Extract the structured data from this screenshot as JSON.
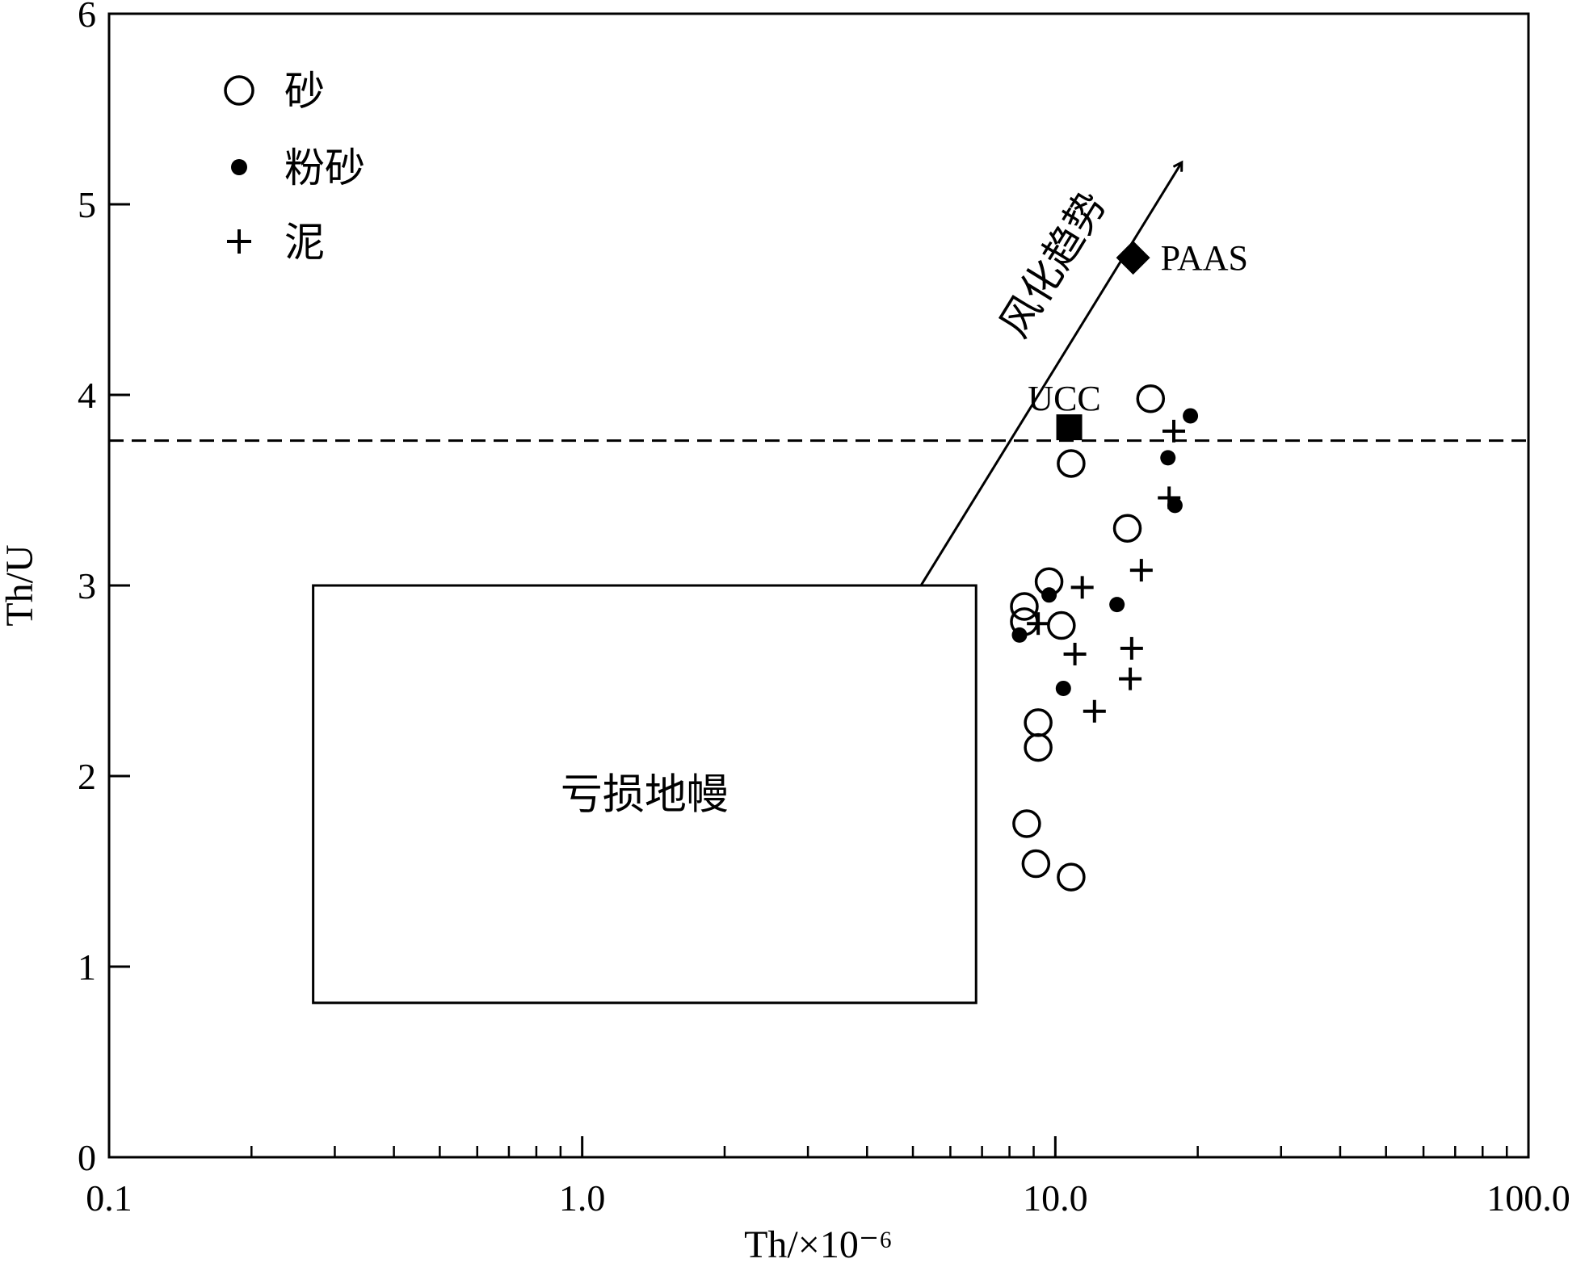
{
  "chart_data": {
    "type": "scatter",
    "xscale": "log",
    "xlim": [
      0.1,
      100
    ],
    "ylim": [
      0,
      6
    ],
    "xlabel": "Th/×10⁻⁶",
    "ylabel": "Th/U",
    "x_ticks": [
      {
        "value": 0.1,
        "label": "0.1"
      },
      {
        "value": 1,
        "label": "1.0"
      },
      {
        "value": 10,
        "label": "10.0"
      },
      {
        "value": 100,
        "label": "100.0"
      }
    ],
    "y_ticks": [
      {
        "value": 0,
        "label": "0"
      },
      {
        "value": 1,
        "label": "1"
      },
      {
        "value": 2,
        "label": "2"
      },
      {
        "value": 3,
        "label": "3"
      },
      {
        "value": 4,
        "label": "4"
      },
      {
        "value": 5,
        "label": "5"
      },
      {
        "value": 6,
        "label": "6"
      }
    ],
    "legend_position": "top-left",
    "series": [
      {
        "name": "砂",
        "marker": "open-circle",
        "points": [
          [
            15.9,
            3.98
          ],
          [
            10.8,
            3.64
          ],
          [
            14.2,
            3.3
          ],
          [
            9.7,
            3.02
          ],
          [
            8.6,
            2.89
          ],
          [
            8.6,
            2.81
          ],
          [
            10.3,
            2.79
          ],
          [
            9.2,
            2.28
          ],
          [
            9.2,
            2.15
          ],
          [
            8.7,
            1.75
          ],
          [
            9.1,
            1.54
          ],
          [
            10.8,
            1.47
          ]
        ]
      },
      {
        "name": "粉砂",
        "marker": "filled-dot",
        "points": [
          [
            19.3,
            3.89
          ],
          [
            17.3,
            3.67
          ],
          [
            17.9,
            3.42
          ],
          [
            9.7,
            2.95
          ],
          [
            13.5,
            2.9
          ],
          [
            8.4,
            2.74
          ],
          [
            10.4,
            2.46
          ]
        ]
      },
      {
        "name": "泥",
        "marker": "plus",
        "points": [
          [
            17.8,
            3.81
          ],
          [
            17.4,
            3.46
          ],
          [
            15.2,
            3.08
          ],
          [
            11.4,
            2.99
          ],
          [
            9.2,
            2.8
          ],
          [
            11.0,
            2.64
          ],
          [
            14.5,
            2.67
          ],
          [
            14.4,
            2.51
          ],
          [
            12.1,
            2.34
          ]
        ]
      }
    ],
    "reference_points": [
      {
        "label": "UCC",
        "marker": "filled-square",
        "x": 10.7,
        "y": 3.83
      },
      {
        "label": "PAAS",
        "marker": "filled-diamond",
        "x": 14.6,
        "y": 4.72
      }
    ],
    "reference_line": {
      "type": "horizontal-dashed",
      "y": 3.76
    },
    "region": {
      "label": "亏损地幔",
      "x": [
        0.27,
        6.8
      ],
      "y": [
        0.81,
        3.0
      ]
    },
    "trend_arrow": {
      "label": "风化趋势",
      "from": [
        5.2,
        3.0
      ],
      "to": [
        18.5,
        5.22
      ]
    }
  }
}
